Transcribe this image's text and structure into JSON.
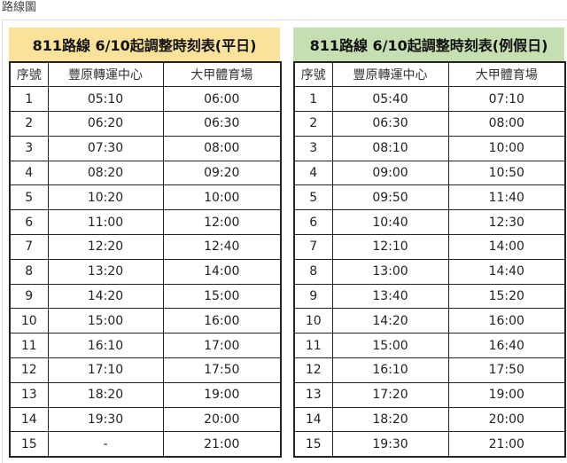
{
  "page_label": "路線圖",
  "columns": [
    "序號",
    "豐原轉運中心",
    "大甲體育場"
  ],
  "weekday": {
    "title": "811路線 6/10起調整時刻表(平日)",
    "color": "#fbe29a",
    "rows": [
      [
        "1",
        "05:10",
        "06:00"
      ],
      [
        "2",
        "06:20",
        "06:30"
      ],
      [
        "3",
        "07:30",
        "08:00"
      ],
      [
        "4",
        "08:20",
        "09:20"
      ],
      [
        "5",
        "10:20",
        "10:00"
      ],
      [
        "6",
        "11:00",
        "12:00"
      ],
      [
        "7",
        "12:20",
        "12:40"
      ],
      [
        "8",
        "13:20",
        "14:00"
      ],
      [
        "9",
        "14:20",
        "15:00"
      ],
      [
        "10",
        "15:00",
        "16:00"
      ],
      [
        "11",
        "16:10",
        "17:00"
      ],
      [
        "12",
        "17:10",
        "17:50"
      ],
      [
        "13",
        "18:20",
        "19:00"
      ],
      [
        "14",
        "19:30",
        "20:00"
      ],
      [
        "15",
        "-",
        "21:00"
      ]
    ]
  },
  "holiday": {
    "title": "811路線 6/10起調整時刻表(例假日)",
    "color": "#c5deb2",
    "rows": [
      [
        "1",
        "05:40",
        "07:10"
      ],
      [
        "2",
        "06:30",
        "08:00"
      ],
      [
        "3",
        "08:10",
        "10:00"
      ],
      [
        "4",
        "09:00",
        "10:50"
      ],
      [
        "5",
        "09:50",
        "11:40"
      ],
      [
        "6",
        "10:40",
        "12:30"
      ],
      [
        "7",
        "12:10",
        "14:00"
      ],
      [
        "8",
        "13:00",
        "14:40"
      ],
      [
        "9",
        "13:40",
        "15:20"
      ],
      [
        "10",
        "14:20",
        "16:00"
      ],
      [
        "11",
        "15:00",
        "16:40"
      ],
      [
        "12",
        "16:10",
        "17:50"
      ],
      [
        "13",
        "17:20",
        "19:00"
      ],
      [
        "14",
        "18:20",
        "20:00"
      ],
      [
        "15",
        "19:30",
        "21:00"
      ]
    ]
  }
}
